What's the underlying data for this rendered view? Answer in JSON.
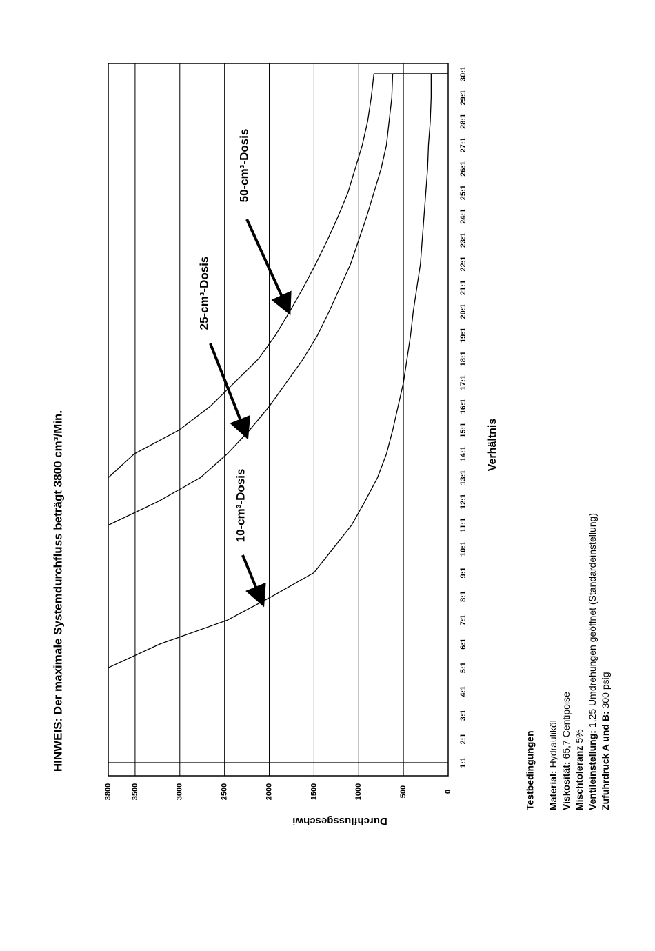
{
  "chart_data": {
    "type": "line",
    "title": "HINWEIS: Der maximale Systemdurchfluss beträgt 3800 cm³/Min.",
    "y_label": "Durchflussgeschwi",
    "x_label": "Verhältnis",
    "x": [
      "1:1",
      "2:1",
      "3:1",
      "4:1",
      "5:1",
      "6:1",
      "7:1",
      "8:1",
      "9:1",
      "10:1",
      "11:1",
      "12:1",
      "13:1",
      "14:1",
      "15:1",
      "16:1",
      "17:1",
      "18:1",
      "19:1",
      "20:1",
      "21:1",
      "22:1",
      "23:1",
      "24:1",
      "25:1",
      "26:1",
      "27:1",
      "28:1",
      "29:1",
      "30:1"
    ],
    "ylim": [
      0,
      3800
    ],
    "yticks": [
      0,
      500,
      1000,
      1500,
      2000,
      2500,
      3000,
      3500,
      3800
    ],
    "grid": true,
    "series": [
      {
        "name": "10-cm³-Dosis",
        "color": "#000000",
        "values": [
          null,
          null,
          null,
          null,
          3800,
          3220,
          2470,
          1970,
          1500,
          1290,
          1080,
          930,
          790,
          690,
          620,
          560,
          500,
          460,
          420,
          390,
          350,
          310,
          290,
          270,
          250,
          230,
          220,
          200,
          190,
          190
        ]
      },
      {
        "name": "25-cm³-Dosis",
        "color": "#000000",
        "values": [
          null,
          null,
          null,
          null,
          null,
          null,
          null,
          null,
          null,
          null,
          3800,
          3240,
          2770,
          2470,
          2220,
          2000,
          1810,
          1620,
          1460,
          1330,
          1210,
          1090,
          1000,
          910,
          830,
          750,
          690,
          660,
          630,
          620
        ]
      },
      {
        "name": "50-cm³-Dosis",
        "color": "#000000",
        "values": [
          null,
          null,
          null,
          null,
          null,
          null,
          null,
          null,
          null,
          null,
          null,
          null,
          3800,
          3510,
          3010,
          2660,
          2390,
          2120,
          1930,
          1770,
          1620,
          1480,
          1350,
          1230,
          1120,
          1040,
          960,
          900,
          860,
          830
        ]
      }
    ],
    "conditions": {
      "heading": "Testbedingungen",
      "items": [
        {
          "label": "Material:",
          "value": "Hydrauliköl"
        },
        {
          "label": "Viskosität:",
          "value": "65,7 Centipoise"
        },
        {
          "label": "Mischtoleranz",
          "value": "5%"
        },
        {
          "label": "Ventileinstellung:",
          "value": "1,25 Umdrehungen geöffnet (Standardeinstellung)"
        },
        {
          "label": "Zufuhrdruck A und B:",
          "value": "300 psig"
        }
      ]
    }
  }
}
